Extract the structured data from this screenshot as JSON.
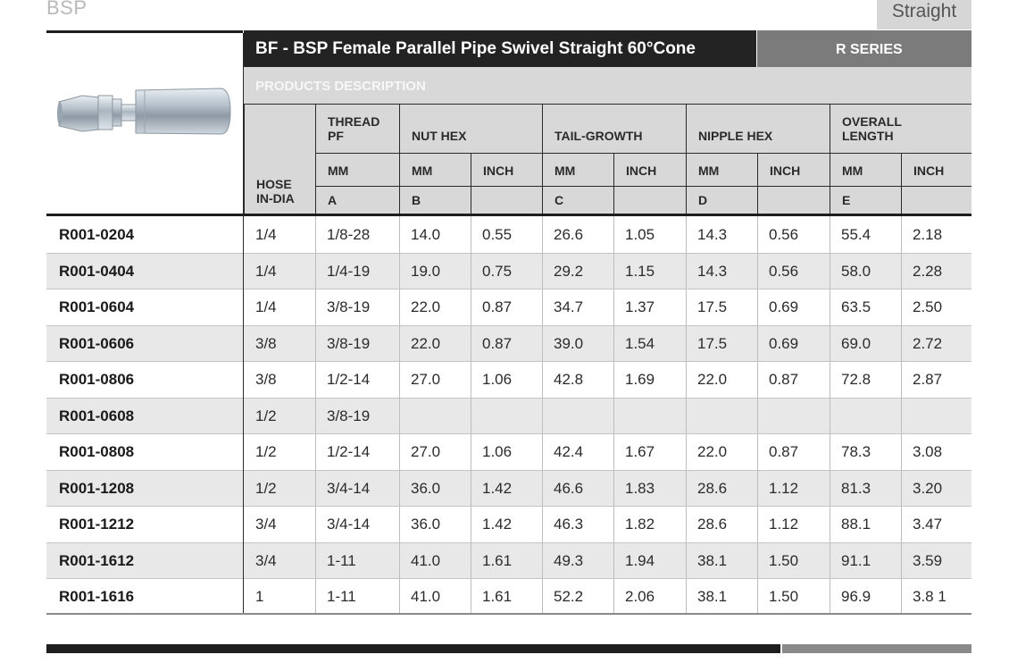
{
  "top": {
    "left_text": "BSP",
    "right_tab": "Straight"
  },
  "product": {
    "title": "BF - BSP Female Parallel Pipe Swivel Straight 60°Cone",
    "series": "R SERIES",
    "description_label": "PRODUCTS DESCRIPTION",
    "image": "hose-fitting-illustration"
  },
  "headers": {
    "hose": "HOSE\nIN-DIA",
    "thread": "THREAD\nPF",
    "nut_hex": "NUT HEX",
    "tail_growth": "TAIL-GROWTH",
    "nipple_hex": "NIPPLE HEX",
    "overall_length": "OVERALL\nLENGTH",
    "mm": "MM",
    "inch": "INCH",
    "letters": {
      "a": "A",
      "b": "B",
      "c": "C",
      "d": "D",
      "e": "E"
    }
  },
  "rows": [
    {
      "code": "R001-0204",
      "hose": "1/4",
      "thread": "1/8-28",
      "nut_mm": "14.0",
      "nut_in": "0.55",
      "tail_mm": "26.6",
      "tail_in": "1.05",
      "nip_mm": "14.3",
      "nip_in": "0.56",
      "len_mm": "55.4",
      "len_in": "2.18"
    },
    {
      "code": "R001-0404",
      "hose": "1/4",
      "thread": "1/4-19",
      "nut_mm": "19.0",
      "nut_in": "0.75",
      "tail_mm": "29.2",
      "tail_in": "1.15",
      "nip_mm": "14.3",
      "nip_in": "0.56",
      "len_mm": "58.0",
      "len_in": "2.28"
    },
    {
      "code": "R001-0604",
      "hose": "1/4",
      "thread": "3/8-19",
      "nut_mm": "22.0",
      "nut_in": "0.87",
      "tail_mm": "34.7",
      "tail_in": "1.37",
      "nip_mm": "17.5",
      "nip_in": "0.69",
      "len_mm": "63.5",
      "len_in": "2.50"
    },
    {
      "code": "R001-0606",
      "hose": "3/8",
      "thread": "3/8-19",
      "nut_mm": "22.0",
      "nut_in": "0.87",
      "tail_mm": "39.0",
      "tail_in": "1.54",
      "nip_mm": "17.5",
      "nip_in": "0.69",
      "len_mm": "69.0",
      "len_in": "2.72"
    },
    {
      "code": "R001-0806",
      "hose": "3/8",
      "thread": "1/2-14",
      "nut_mm": "27.0",
      "nut_in": "1.06",
      "tail_mm": "42.8",
      "tail_in": "1.69",
      "nip_mm": "22.0",
      "nip_in": "0.87",
      "len_mm": "72.8",
      "len_in": "2.87"
    },
    {
      "code": "R001-0608",
      "hose": "1/2",
      "thread": "3/8-19",
      "nut_mm": "",
      "nut_in": "",
      "tail_mm": "",
      "tail_in": "",
      "nip_mm": "",
      "nip_in": "",
      "len_mm": "",
      "len_in": ""
    },
    {
      "code": "R001-0808",
      "hose": "1/2",
      "thread": "1/2-14",
      "nut_mm": "27.0",
      "nut_in": "1.06",
      "tail_mm": "42.4",
      "tail_in": "1.67",
      "nip_mm": "22.0",
      "nip_in": "0.87",
      "len_mm": "78.3",
      "len_in": "3.08"
    },
    {
      "code": "R001-1208",
      "hose": "1/2",
      "thread": "3/4-14",
      "nut_mm": "36.0",
      "nut_in": "1.42",
      "tail_mm": "46.6",
      "tail_in": "1.83",
      "nip_mm": "28.6",
      "nip_in": "1.12",
      "len_mm": "81.3",
      "len_in": "3.20"
    },
    {
      "code": "R001-1212",
      "hose": "3/4",
      "thread": "3/4-14",
      "nut_mm": "36.0",
      "nut_in": "1.42",
      "tail_mm": "46.3",
      "tail_in": "1.82",
      "nip_mm": "28.6",
      "nip_in": "1.12",
      "len_mm": "88.1",
      "len_in": "3.47"
    },
    {
      "code": "R001-1612",
      "hose": "3/4",
      "thread": "1-11",
      "nut_mm": "41.0",
      "nut_in": "1.61",
      "tail_mm": "49.3",
      "tail_in": "1.94",
      "nip_mm": "38.1",
      "nip_in": "1.50",
      "len_mm": "91.1",
      "len_in": "3.59"
    },
    {
      "code": "R001-1616",
      "hose": "1",
      "thread": "1-11",
      "nut_mm": "41.0",
      "nut_in": "1.61",
      "tail_mm": "52.2",
      "tail_in": "2.06",
      "nip_mm": "38.1",
      "nip_in": "1.50",
      "len_mm": "96.9",
      "len_in": "3.8 1"
    }
  ]
}
